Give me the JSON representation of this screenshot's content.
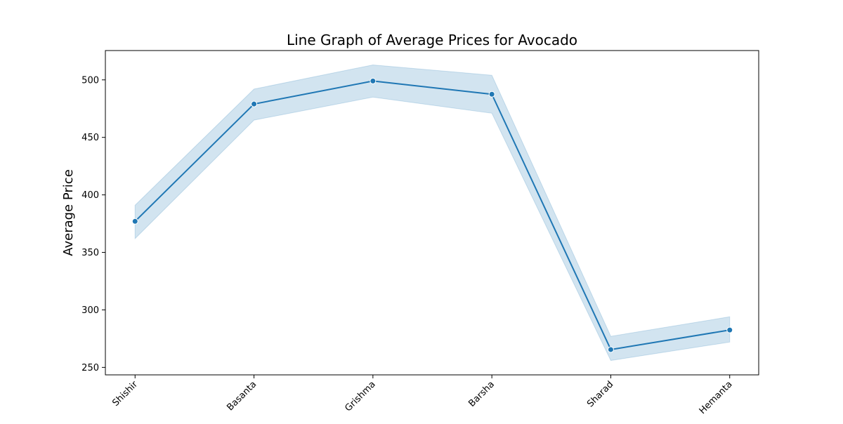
{
  "chart_data": {
    "type": "line",
    "title": "Line Graph of Average Prices for Avocado",
    "xlabel": "",
    "ylabel": "Average Price",
    "categories": [
      "Shishir",
      "Basanta",
      "Grishma",
      "Barsha",
      "Sharad",
      "Hemanta"
    ],
    "series": [
      {
        "values": [
          377,
          479,
          499,
          487.5,
          265.5,
          282.5
        ],
        "ci_lower": [
          362,
          465,
          485,
          471,
          256,
          272
        ],
        "ci_upper": [
          391,
          492,
          513,
          504,
          277,
          294
        ]
      }
    ],
    "ylim": [
      243.5,
      525.5
    ],
    "yticks": [
      250,
      300,
      350,
      400,
      450,
      500
    ],
    "grid": false,
    "colors": {
      "line": "#1f77b4",
      "band": "#1f77b4"
    }
  }
}
